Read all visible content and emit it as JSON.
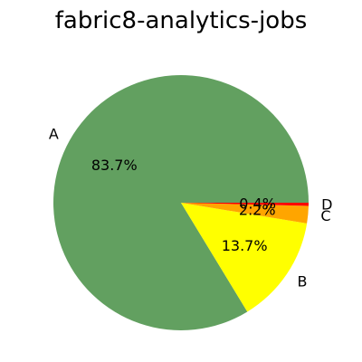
{
  "chart_data": {
    "type": "pie",
    "title": "fabric8-analytics-jobs",
    "slices": [
      {
        "label": "A",
        "value": 83.7,
        "pct_label": "83.7%",
        "color": "#62a060"
      },
      {
        "label": "B",
        "value": 13.7,
        "pct_label": "13.7%",
        "color": "#ffff00"
      },
      {
        "label": "C",
        "value": 2.2,
        "pct_label": "2.2%",
        "color": "#ffa500"
      },
      {
        "label": "D",
        "value": 0.4,
        "pct_label": "0.4%",
        "color": "#ff0000"
      }
    ],
    "start_angle_deg": 0,
    "direction": "counterclockwise",
    "legend": "none"
  }
}
